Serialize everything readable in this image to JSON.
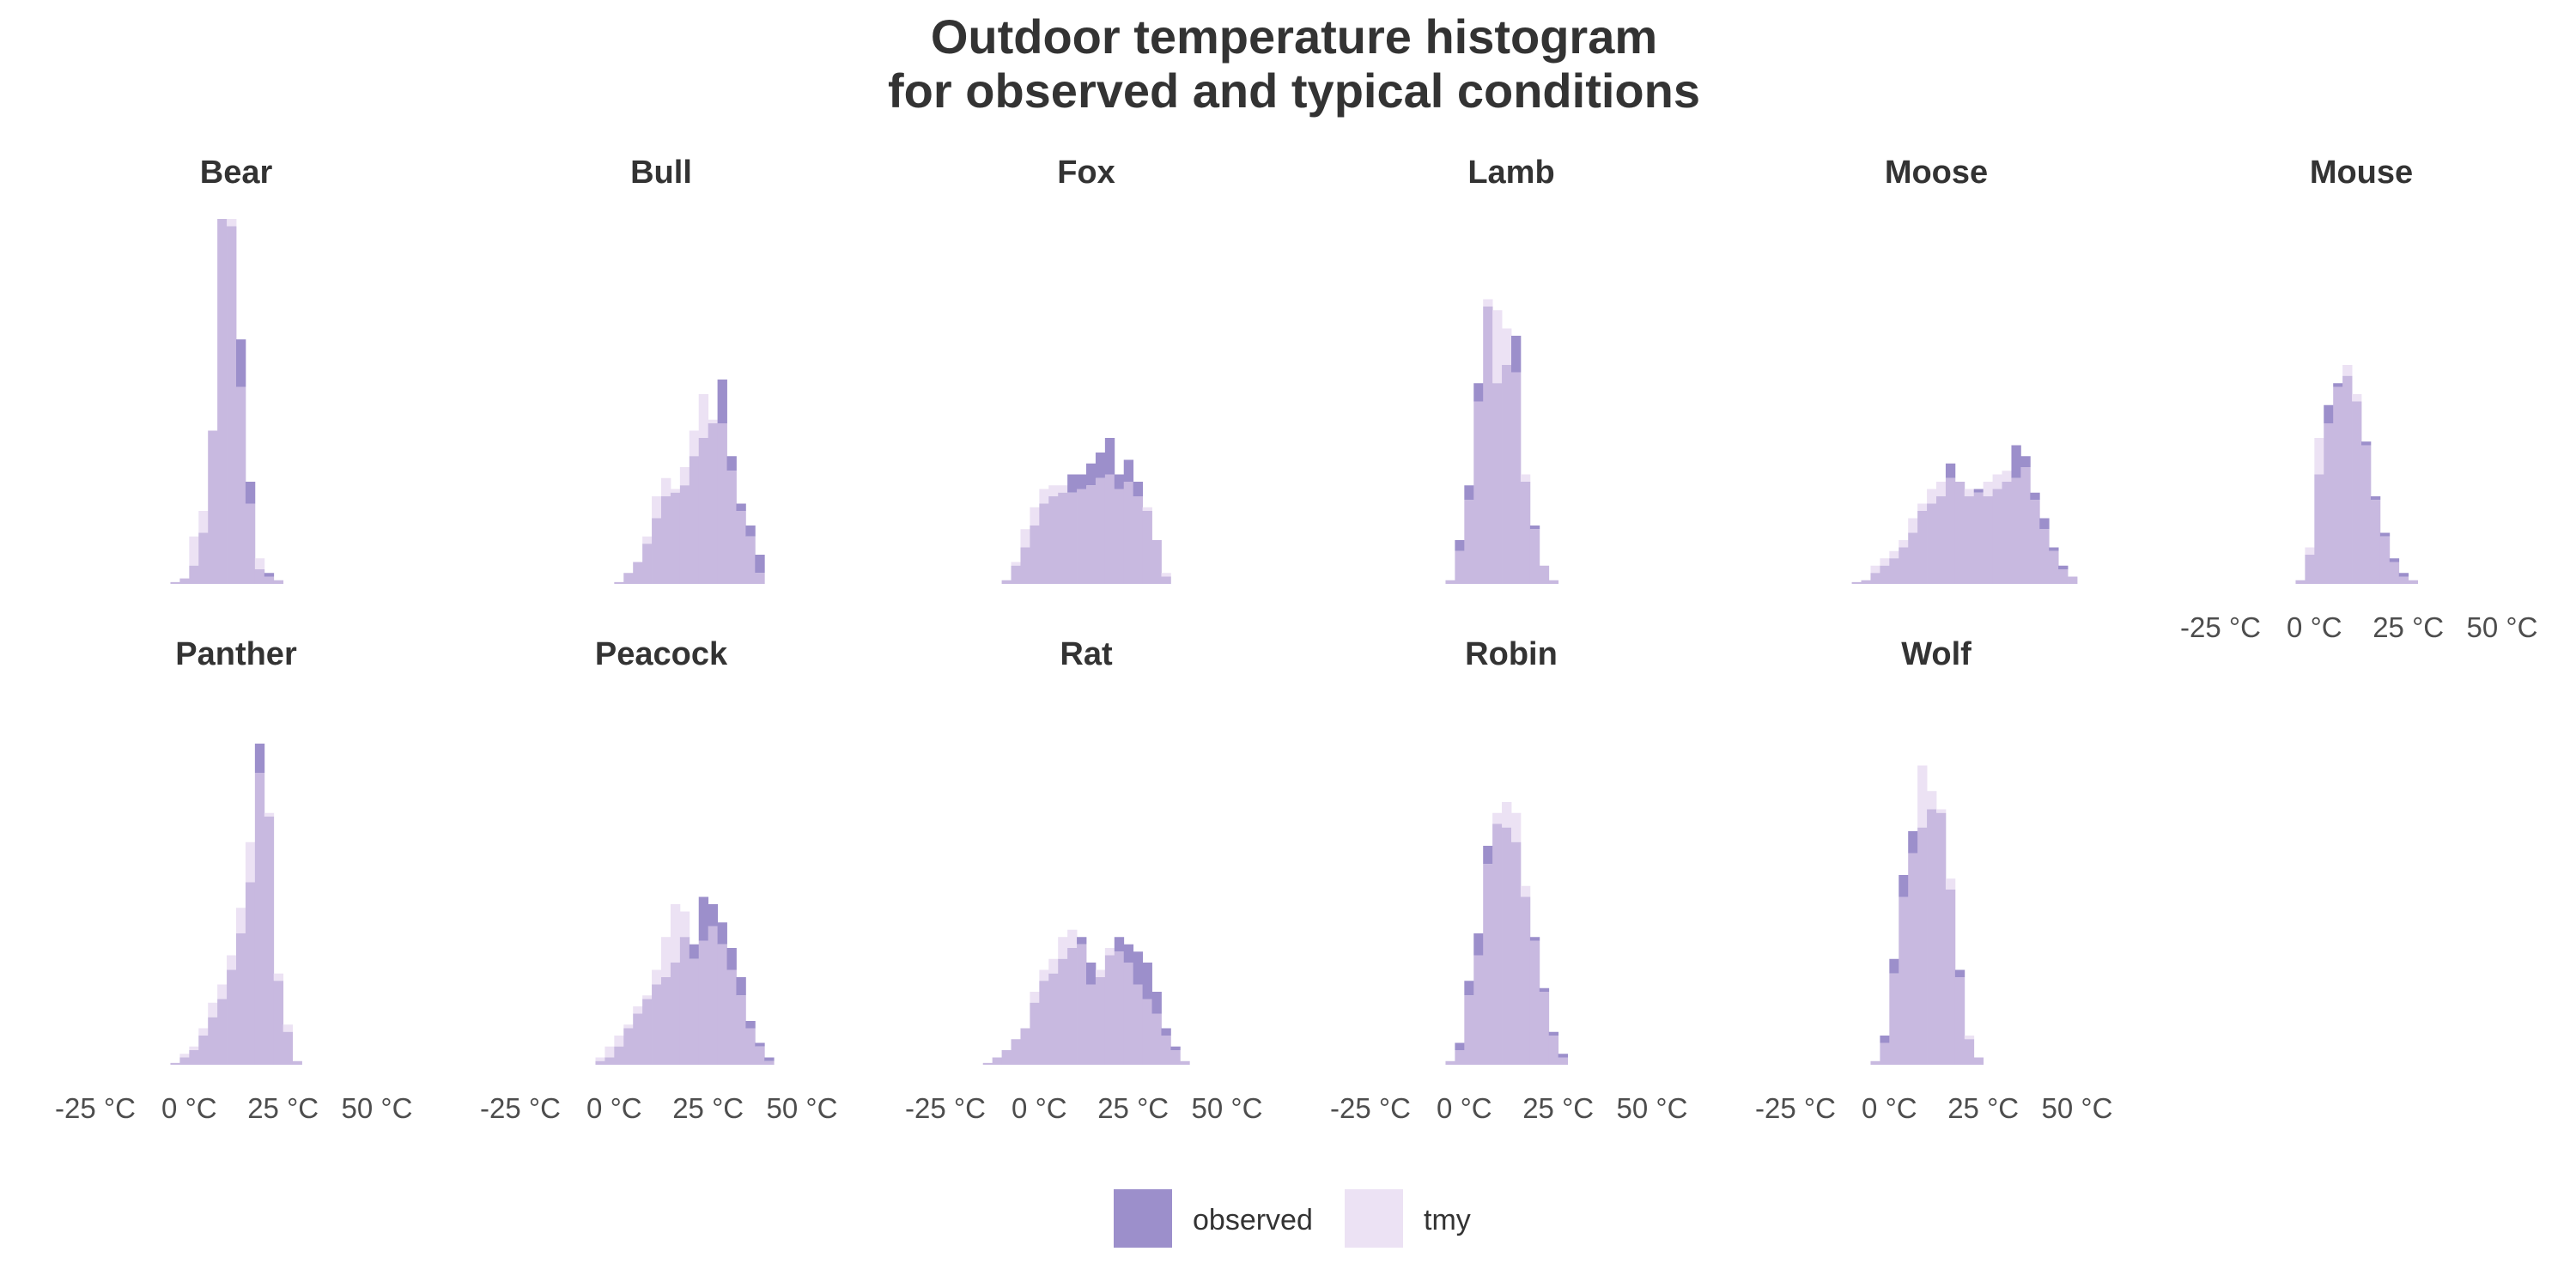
{
  "chart_data": {
    "type": "bar",
    "title_lines": [
      "Outdoor temperature histogram",
      "for observed and typical conditions"
    ],
    "colors": {
      "observed": "#9c8fcb",
      "tmy": "#ece2f4",
      "overlap": "#c8b9e0"
    },
    "bin_width_c": 2.5,
    "x_range": [
      -25,
      50
    ],
    "x_ticks": [
      -25,
      0,
      25,
      50
    ],
    "x_tick_labels": [
      "-25 °C",
      "0 °C",
      "25 °C",
      "50 °C"
    ],
    "legend": [
      {
        "key": "observed",
        "label": "observed"
      },
      {
        "key": "tmy",
        "label": "tmy"
      }
    ],
    "panels": [
      {
        "name": "Bear",
        "start": -5,
        "observed": [
          0.5,
          1.5,
          5,
          14,
          42,
          100,
          98,
          67,
          28,
          4,
          3,
          1
        ],
        "tmy": [
          0.5,
          1.5,
          13,
          20,
          42,
          100,
          100,
          54,
          22,
          7,
          2,
          1
        ]
      },
      {
        "name": "Bull",
        "start": 0,
        "observed": [
          0.5,
          3,
          6,
          11,
          18,
          24,
          25,
          27,
          35,
          40,
          44,
          56,
          35,
          22,
          16,
          8
        ],
        "tmy": [
          0.5,
          3,
          6,
          13,
          24,
          29,
          26,
          32,
          42,
          52,
          45,
          44,
          31,
          20,
          13,
          3
        ]
      },
      {
        "name": "Fox",
        "start": -10,
        "observed": [
          1,
          5,
          10,
          16,
          22,
          24,
          25,
          30,
          30,
          33,
          36,
          40,
          30,
          34,
          28,
          20,
          12,
          2
        ],
        "tmy": [
          1,
          6,
          15,
          21,
          26,
          27,
          27,
          25,
          26,
          27,
          29,
          30,
          26,
          28,
          24,
          21,
          12,
          3
        ]
      },
      {
        "name": "Lamb",
        "start": -5,
        "observed": [
          1,
          12,
          27,
          55,
          76,
          55,
          60,
          68,
          28,
          16,
          5,
          1
        ],
        "tmy": [
          1,
          9,
          23,
          50,
          78,
          75,
          70,
          58,
          30,
          15,
          5,
          1
        ]
      },
      {
        "name": "Moose",
        "start": -10,
        "observed": [
          0.5,
          1,
          3,
          5,
          7,
          10,
          14,
          20,
          22,
          24,
          33,
          28,
          24,
          26,
          24,
          26,
          28,
          38,
          35,
          25,
          18,
          10,
          5,
          2
        ],
        "tmy": [
          0.5,
          1,
          5,
          7,
          9,
          12,
          18,
          22,
          26,
          28,
          29,
          28,
          26,
          25,
          28,
          30,
          31,
          29,
          32,
          23,
          15,
          9,
          4,
          2
        ]
      },
      {
        "name": "Mouse",
        "start": -5,
        "observed": [
          1,
          8,
          30,
          49,
          55,
          57,
          50,
          39,
          24,
          14,
          7,
          3,
          1
        ],
        "tmy": [
          1,
          10,
          40,
          44,
          54,
          60,
          52,
          38,
          23,
          13,
          6,
          2,
          1
        ]
      },
      {
        "name": "Panther",
        "start": -5,
        "observed": [
          0.5,
          2,
          4,
          8,
          13,
          18,
          26,
          36,
          50,
          88,
          68,
          23,
          9,
          1
        ],
        "tmy": [
          0.5,
          3,
          5,
          10,
          17,
          22,
          30,
          43,
          61,
          80,
          69,
          25,
          11,
          1
        ]
      },
      {
        "name": "Peacock",
        "start": -5,
        "observed": [
          1,
          2,
          5,
          10,
          14,
          18,
          22,
          24,
          28,
          35,
          33,
          46,
          44,
          39,
          32,
          24,
          12,
          6,
          2
        ],
        "tmy": [
          2,
          5,
          8,
          11,
          16,
          19,
          26,
          35,
          44,
          42,
          29,
          34,
          38,
          33,
          26,
          19,
          10,
          5,
          1
        ]
      },
      {
        "name": "Rat",
        "start": -15,
        "observed": [
          0.5,
          2,
          4,
          7,
          10,
          17,
          23,
          25,
          29,
          32,
          35,
          28,
          24,
          30,
          35,
          33,
          31,
          28,
          20,
          10,
          5,
          1
        ],
        "tmy": [
          0.5,
          2,
          4,
          7,
          10,
          20,
          26,
          29,
          35,
          37,
          33,
          22,
          26,
          32,
          31,
          28,
          22,
          18,
          14,
          8,
          4,
          1
        ]
      },
      {
        "name": "Robin",
        "start": -5,
        "observed": [
          1,
          6,
          23,
          36,
          60,
          66,
          65,
          61,
          46,
          35,
          21,
          9,
          3
        ],
        "tmy": [
          1,
          4,
          19,
          30,
          55,
          69,
          72,
          69,
          49,
          34,
          20,
          8,
          2
        ]
      },
      {
        "name": "Wolf",
        "start": -5,
        "observed": [
          1,
          8,
          29,
          52,
          64,
          65,
          70,
          69,
          48,
          26,
          7,
          2
        ],
        "tmy": [
          1,
          6,
          25,
          46,
          58,
          82,
          75,
          70,
          51,
          24,
          8,
          2
        ]
      }
    ]
  }
}
